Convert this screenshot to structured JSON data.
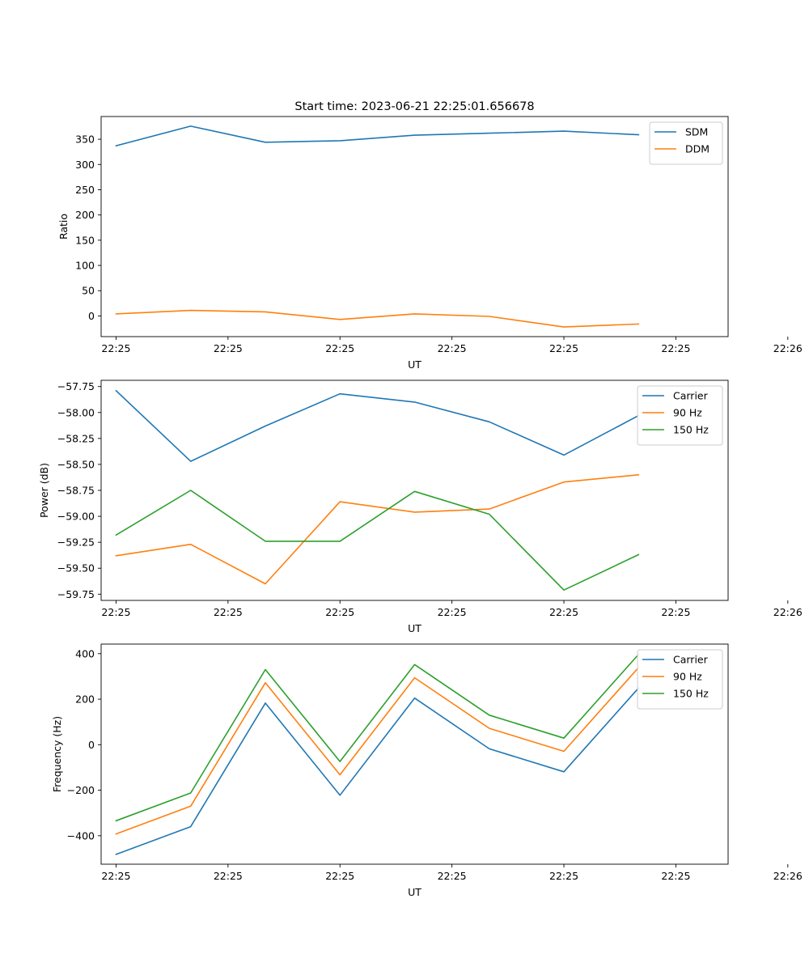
{
  "figure_title": "Start time: 2023-06-21 22:25:01.656678",
  "colors": {
    "blue": "#1f77b4",
    "orange": "#ff7f0e",
    "green": "#2ca02c"
  },
  "chart_data": [
    {
      "type": "line",
      "title": "Start time: 2023-06-21 22:25:01.656678",
      "xlabel": "UT",
      "ylabel": "Ratio",
      "x": [
        1,
        2,
        3,
        4,
        5,
        6,
        7,
        8
      ],
      "xlim": [
        0.8,
        9.2
      ],
      "x_ticks": [
        1,
        2.5,
        4,
        5.5,
        7,
        8.5,
        10
      ],
      "x_tick_labels": [
        "22:25",
        "22:25",
        "22:25",
        "22:25",
        "22:25",
        "22:25",
        "22:26"
      ],
      "ylim": [
        -41,
        395
      ],
      "y_ticks": [
        0,
        50,
        100,
        150,
        200,
        250,
        300,
        350
      ],
      "y_tick_labels": [
        "0",
        "50",
        "100",
        "150",
        "200",
        "250",
        "300",
        "350"
      ],
      "legend": "upper right",
      "series": [
        {
          "name": "SDM",
          "color": "#1f77b4",
          "values": [
            337,
            376,
            344,
            347,
            358,
            362,
            366,
            359
          ]
        },
        {
          "name": "DDM",
          "color": "#ff7f0e",
          "values": [
            4,
            11,
            8,
            -7,
            4,
            -1,
            -22,
            -16
          ]
        }
      ]
    },
    {
      "type": "line",
      "xlabel": "UT",
      "ylabel": "Power (dB)",
      "x": [
        1,
        2,
        3,
        4,
        5,
        6,
        7,
        8
      ],
      "xlim": [
        0.8,
        9.2
      ],
      "x_ticks": [
        1,
        2.5,
        4,
        5.5,
        7,
        8.5,
        10
      ],
      "x_tick_labels": [
        "22:25",
        "22:25",
        "22:25",
        "22:25",
        "22:25",
        "22:25",
        "22:26"
      ],
      "ylim": [
        -59.81,
        -57.69
      ],
      "y_ticks": [
        -59.75,
        -59.5,
        -59.25,
        -59.0,
        -58.75,
        -58.5,
        -58.25,
        -58.0,
        -57.75
      ],
      "y_tick_labels": [
        "−59.75",
        "−59.50",
        "−59.25",
        "−59.00",
        "−58.75",
        "−58.50",
        "−58.25",
        "−58.00",
        "−57.75"
      ],
      "legend": "upper right",
      "series": [
        {
          "name": "Carrier",
          "color": "#1f77b4",
          "values": [
            -57.79,
            -58.47,
            -58.13,
            -57.82,
            -57.9,
            -58.09,
            -58.41,
            -58.03
          ]
        },
        {
          "name": "90 Hz",
          "color": "#ff7f0e",
          "values": [
            -59.38,
            -59.27,
            -59.65,
            -58.86,
            -58.96,
            -58.93,
            -58.67,
            -58.6
          ]
        },
        {
          "name": "150 Hz",
          "color": "#2ca02c",
          "values": [
            -59.18,
            -58.75,
            -59.24,
            -59.24,
            -58.76,
            -58.98,
            -59.71,
            -59.37
          ]
        }
      ]
    },
    {
      "type": "line",
      "xlabel": "UT",
      "ylabel": "Frequency (Hz)",
      "x": [
        1,
        2,
        3,
        4,
        5,
        6,
        7,
        8
      ],
      "xlim": [
        0.8,
        9.2
      ],
      "x_ticks": [
        1,
        2.5,
        4,
        5.5,
        7,
        8.5,
        10
      ],
      "x_tick_labels": [
        "22:25",
        "22:25",
        "22:25",
        "22:25",
        "22:25",
        "22:25",
        "22:26"
      ],
      "ylim": [
        -525,
        442
      ],
      "y_ticks": [
        -400,
        -200,
        0,
        200,
        400
      ],
      "y_tick_labels": [
        "−400",
        "−200",
        "0",
        "200",
        "400"
      ],
      "legend": "upper right",
      "series": [
        {
          "name": "Carrier",
          "color": "#1f77b4",
          "values": [
            -482,
            -360,
            183,
            -222,
            205,
            -18,
            -119,
            249
          ]
        },
        {
          "name": "90 Hz",
          "color": "#ff7f0e",
          "values": [
            -392,
            -270,
            272,
            -132,
            294,
            72,
            -29,
            339
          ]
        },
        {
          "name": "150 Hz",
          "color": "#2ca02c",
          "values": [
            -334,
            -212,
            330,
            -74,
            352,
            130,
            29,
            397
          ]
        }
      ]
    }
  ]
}
